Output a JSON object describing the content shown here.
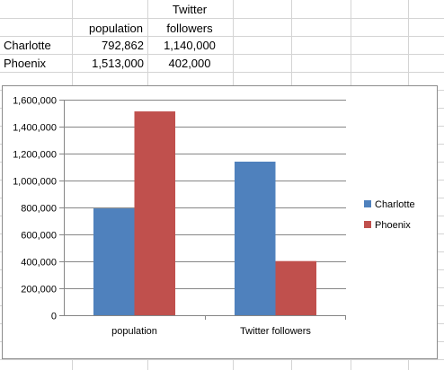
{
  "spreadsheet": {
    "header": {
      "population": "population",
      "twitter_line1": "Twitter",
      "twitter_line2": "followers"
    },
    "rows": [
      {
        "name": "Charlotte",
        "population": "792,862",
        "twitter": "1,140,000"
      },
      {
        "name": "Phoenix",
        "population": "1,513,000",
        "twitter": "402,000"
      }
    ]
  },
  "chart_data": {
    "type": "bar",
    "categories": [
      "population",
      "Twitter followers"
    ],
    "series": [
      {
        "name": "Charlotte",
        "values": [
          792862,
          1140000
        ],
        "color": "#4F81BD"
      },
      {
        "name": "Phoenix",
        "values": [
          1513000,
          402000
        ],
        "color": "#C0504D"
      }
    ],
    "title": "",
    "xlabel": "",
    "ylabel": "",
    "ylim": [
      0,
      1600000
    ],
    "yticks": [
      0,
      200000,
      400000,
      600000,
      800000,
      1000000,
      1200000,
      1400000,
      1600000
    ],
    "ytick_labels": [
      "0",
      "200,000",
      "400,000",
      "600,000",
      "800,000",
      "1,000,000",
      "1,200,000",
      "1,400,000",
      "1,600,000"
    ],
    "grid": true,
    "legend": "right"
  }
}
